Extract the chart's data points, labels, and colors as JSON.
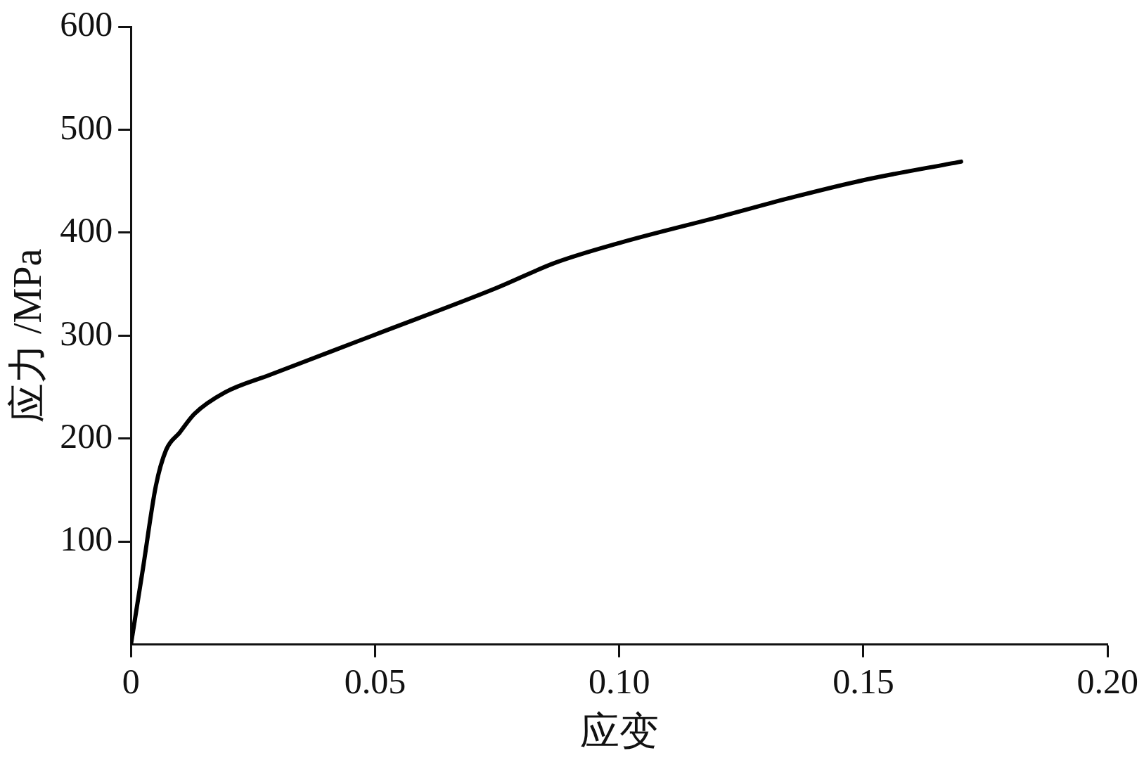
{
  "chart_data": {
    "type": "line",
    "xlabel": "应变",
    "ylabel": "应力 /MPa",
    "x": [
      0,
      0.0025,
      0.0051,
      0.0072,
      0.01,
      0.013,
      0.0193,
      0.0285,
      0.05,
      0.0747,
      0.087,
      0.1,
      0.121,
      0.136,
      0.15,
      0.17
    ],
    "values": [
      0,
      75,
      154,
      189,
      206,
      224,
      245,
      262,
      301,
      346,
      371,
      390,
      416,
      435,
      451,
      469
    ],
    "color": "#000000",
    "xlim": [
      0,
      0.2
    ],
    "ylim": [
      0,
      600
    ],
    "xticks": [
      0,
      0.05,
      {
        "value": 0.1,
        "label": "0.10"
      },
      0.15,
      {
        "value": 0.2,
        "label": "0.20"
      }
    ],
    "yticks": [
      100,
      200,
      300,
      400,
      500,
      600
    ],
    "grid": false,
    "legend": false,
    "marker": "none",
    "line_style": "solid"
  }
}
